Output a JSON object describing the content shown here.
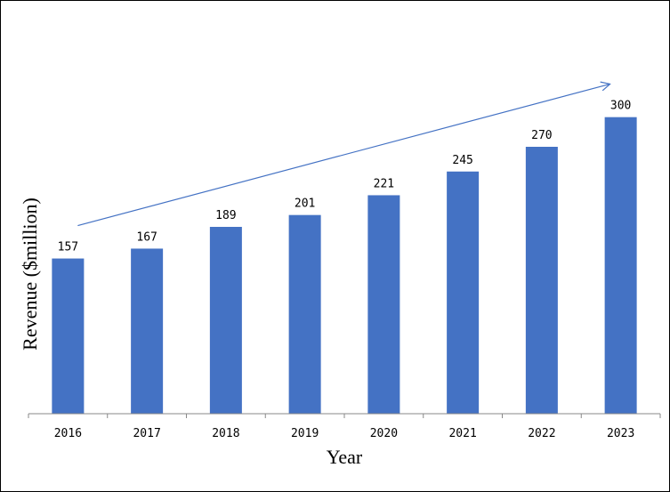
{
  "chart_data": {
    "type": "bar",
    "categories": [
      "2016",
      "2017",
      "2018",
      "2019",
      "2020",
      "2021",
      "2022",
      "2023"
    ],
    "values": [
      157,
      167,
      189,
      201,
      221,
      245,
      270,
      300
    ],
    "data_labels": [
      "157",
      "167",
      "189",
      "201",
      "221",
      "245",
      "270",
      "300"
    ],
    "xlabel": "Year",
    "ylabel": "Revenue ($million)",
    "ylim": [
      0,
      330
    ],
    "grid": false,
    "legend": "none",
    "trend_arrow": true,
    "bar_color": "#4472C4",
    "arrow_color": "#4472C4"
  }
}
